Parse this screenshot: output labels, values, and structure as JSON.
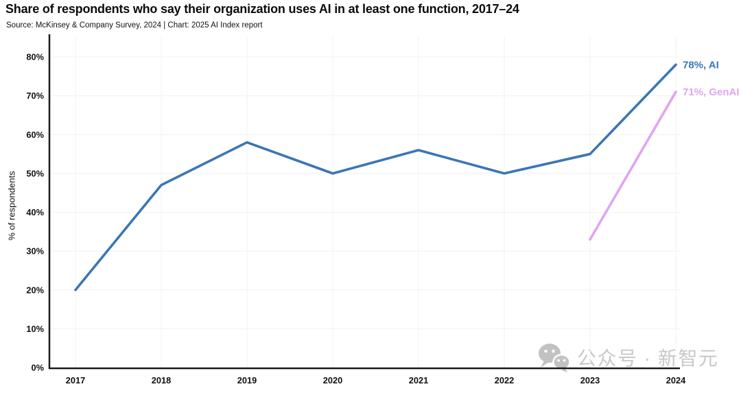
{
  "title": "Share of respondents who say their organization uses AI in at least one function, 2017–24",
  "source": "Source: McKinsey & Company Survey, 2024 | Chart: 2025 AI Index report",
  "watermark": "公众号 · 新智元",
  "colors": {
    "ai_line": "#3b76b6",
    "genai_line": "#dfa5f1",
    "axis": "#1a1a1c",
    "grid": "#f3f3f3",
    "text": "#101010",
    "watermark": "#c6c6c6"
  },
  "chart_data": {
    "type": "line",
    "x": [
      2017,
      2018,
      2019,
      2020,
      2021,
      2022,
      2023,
      2024
    ],
    "series": [
      {
        "name": "AI",
        "values": [
          20,
          47,
          58,
          50,
          56,
          50,
          55,
          78
        ],
        "color": "#3b76b6",
        "end_label": "78%, AI"
      },
      {
        "name": "GenAI",
        "x": [
          2023,
          2024
        ],
        "values": [
          33,
          71
        ],
        "color": "#dfa5f1",
        "end_label": "71%, GenAI"
      }
    ],
    "title": "Share of respondents who say their organization uses AI in at least one function, 2017–24",
    "xlabel": "",
    "ylabel": "% of respondents",
    "ylim": [
      0,
      80
    ],
    "ytick_step": 10,
    "ytick_suffix": "%",
    "grid": true,
    "legend_position": "end-labels"
  }
}
